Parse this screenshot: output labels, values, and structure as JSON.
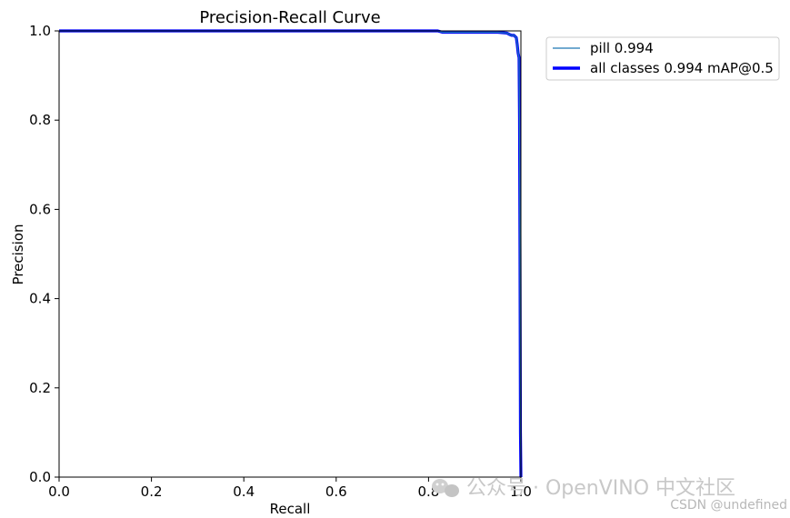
{
  "chart_data": {
    "type": "line",
    "title": "Precision-Recall Curve",
    "xlabel": "Recall",
    "ylabel": "Precision",
    "xlim": [
      0,
      1
    ],
    "ylim": [
      0,
      1
    ],
    "xticks": [
      "0.0",
      "0.2",
      "0.4",
      "0.6",
      "0.8",
      "1.0"
    ],
    "yticks": [
      "0.0",
      "0.2",
      "0.4",
      "0.6",
      "0.8",
      "1.0"
    ],
    "grid": false,
    "legend_position": "outside-top-right",
    "series": [
      {
        "name": "pill 0.994",
        "color": "#1f77b4",
        "style": "thin",
        "x": [
          0.0,
          0.5,
          0.82,
          0.83,
          0.9,
          0.95,
          0.97,
          0.975,
          0.98,
          0.985,
          0.99,
          0.992,
          0.994,
          0.996,
          0.997,
          0.998,
          0.999,
          1.0
        ],
        "y": [
          1.0,
          1.0,
          1.0,
          0.997,
          0.997,
          0.997,
          0.995,
          0.992,
          0.99,
          0.99,
          0.985,
          0.97,
          0.95,
          0.94,
          0.8,
          0.5,
          0.1,
          0.0
        ]
      },
      {
        "name": "all classes 0.994 mAP@0.5",
        "color": "#0000ff",
        "style": "thick",
        "x": [
          0.0,
          0.5,
          0.82,
          0.83,
          0.9,
          0.95,
          0.97,
          0.975,
          0.98,
          0.985,
          0.99,
          0.992,
          0.994,
          0.996,
          0.997,
          0.998,
          0.999,
          1.0
        ],
        "y": [
          1.0,
          1.0,
          1.0,
          0.997,
          0.997,
          0.997,
          0.995,
          0.992,
          0.99,
          0.99,
          0.985,
          0.97,
          0.95,
          0.94,
          0.8,
          0.5,
          0.1,
          0.0
        ]
      }
    ]
  },
  "watermark": {
    "text": "公众号 · OpenVINO 中文社区",
    "credit": "CSDN @undefined",
    "icon": "wechat-icon"
  }
}
